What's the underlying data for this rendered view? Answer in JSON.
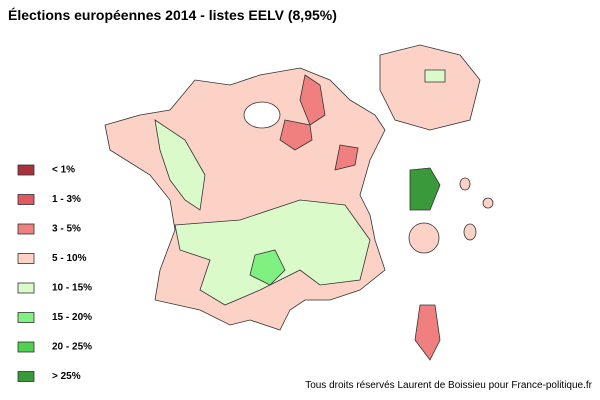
{
  "title": "Élections européennes 2014 - listes EELV (8,95%)",
  "legend": [
    {
      "label": "< 1%",
      "color": "#a8323c"
    },
    {
      "label": "1 - 3%",
      "color": "#e05860"
    },
    {
      "label": "3 - 5%",
      "color": "#f08080"
    },
    {
      "label": "5 - 10%",
      "color": "#fcd2c6"
    },
    {
      "label": "10 - 15%",
      "color": "#dafaca"
    },
    {
      "label": "15 - 20%",
      "color": "#80f080"
    },
    {
      "label": "20 - 25%",
      "color": "#50d050"
    },
    {
      "label": "> 25%",
      "color": "#3a9a3a"
    }
  ],
  "credit": "Tous droits réservés Laurent de Boissieu pour France-politique.fr"
}
